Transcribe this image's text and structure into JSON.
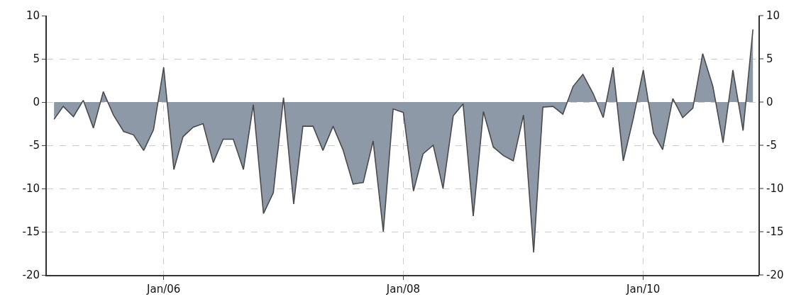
{
  "chart_data": {
    "type": "area",
    "x": [
      "2005-02",
      "2005-03",
      "2005-04",
      "2005-05",
      "2005-06",
      "2005-07",
      "2005-08",
      "2005-09",
      "2005-10",
      "2005-11",
      "2005-12",
      "2006-01",
      "2006-02",
      "2006-03",
      "2006-04",
      "2006-05",
      "2006-06",
      "2006-07",
      "2006-08",
      "2006-09",
      "2006-10",
      "2006-11",
      "2006-12",
      "2007-01",
      "2007-02",
      "2007-03",
      "2007-04",
      "2007-05",
      "2007-06",
      "2007-07",
      "2007-08",
      "2007-09",
      "2007-10",
      "2007-11",
      "2007-12",
      "2008-01",
      "2008-02",
      "2008-03",
      "2008-04",
      "2008-05",
      "2008-06",
      "2008-07",
      "2008-08",
      "2008-09",
      "2008-10",
      "2008-11",
      "2008-12",
      "2009-01",
      "2009-02",
      "2009-03",
      "2009-04",
      "2009-05",
      "2009-06",
      "2009-07",
      "2009-08",
      "2009-09",
      "2009-10",
      "2009-11",
      "2009-12",
      "2010-01",
      "2010-02",
      "2010-03",
      "2010-04",
      "2010-05",
      "2010-06",
      "2010-07",
      "2010-08",
      "2010-09",
      "2010-10",
      "2010-11",
      "2010-12"
    ],
    "series": [
      {
        "color": "#8e99a8",
        "values": [
          -2,
          -0.5,
          -1.7,
          0.2,
          -3,
          1.2,
          -1.5,
          -3.4,
          -3.8,
          -5.6,
          -3.2,
          4,
          -7.8,
          -4,
          -2.9,
          -2.5,
          -7,
          -4.3,
          -4.3,
          -7.8,
          -0.3,
          -12.9,
          -10.5,
          0.5,
          -11.8,
          -2.8,
          -2.8,
          -5.6,
          -2.8,
          -5.5,
          -9.5,
          -9.3,
          -4.5,
          -15,
          -0.8,
          -1.2,
          -10.3,
          -6,
          -5,
          -10,
          -1.6,
          -0.2,
          -13.2,
          -1.1,
          -5.2,
          -6.2,
          -6.8,
          -1.5,
          -17.4,
          -0.6,
          -0.5,
          -1.4,
          1.8,
          3.2,
          1,
          -1.8,
          4,
          -6.8,
          -2,
          3.7,
          -3.6,
          -5.5,
          0.4,
          -1.8,
          -0.7,
          5.6,
          1.8,
          -4.7,
          3.7,
          -3.3,
          8.4
        ]
      }
    ],
    "xlim": [
      "2005-01-10",
      "2010-12-20"
    ],
    "xticks": [
      {
        "value": "2006-01",
        "label": "Jan/06"
      },
      {
        "value": "2008-01",
        "label": "Jan/08"
      },
      {
        "value": "2010-01",
        "label": "Jan/10"
      }
    ],
    "ylim": [
      -20,
      10
    ],
    "yticks": [
      -20,
      -15,
      -10,
      -5,
      0,
      5,
      10
    ],
    "y2lim": [
      -20,
      10
    ],
    "y2ticks": [
      -20,
      -15,
      -10,
      -5,
      0,
      5,
      10
    ],
    "grid": true
  }
}
